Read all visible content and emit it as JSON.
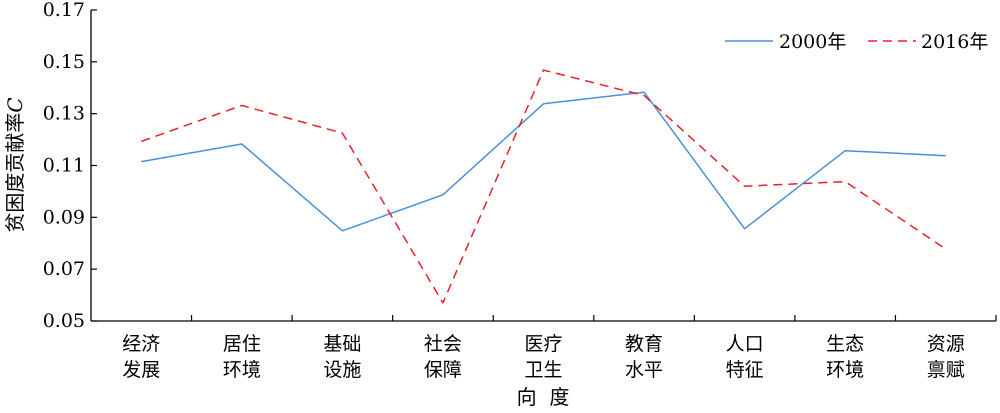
{
  "chart_data": {
    "type": "line",
    "ylabel_main": "贫困度贡献率",
    "ylabel_var": "C",
    "xlabel": "向  度",
    "ylim": [
      0.05,
      0.17
    ],
    "yticks": [
      "0.05",
      "0.07",
      "0.09",
      "0.11",
      "0.13",
      "0.15",
      "0.17"
    ],
    "categories": [
      [
        "经济",
        "发展"
      ],
      [
        "居住",
        "环境"
      ],
      [
        "基础",
        "设施"
      ],
      [
        "社会",
        "保障"
      ],
      [
        "医疗",
        "卫生"
      ],
      [
        "教育",
        "水平"
      ],
      [
        "人口",
        "特征"
      ],
      [
        "生态",
        "环境"
      ],
      [
        "资源",
        "禀赋"
      ]
    ],
    "series": [
      {
        "name": "2000年",
        "color": "#4a90d9",
        "dash": "solid",
        "values": [
          0.1115,
          0.1183,
          0.0848,
          0.0987,
          0.1338,
          0.1383,
          0.0856,
          0.1157,
          0.1138
        ]
      },
      {
        "name": "2016年",
        "color": "#e8212b",
        "dash": "dashed",
        "values": [
          0.1193,
          0.1332,
          0.1225,
          0.057,
          0.1468,
          0.137,
          0.102,
          0.1038,
          0.0778
        ]
      }
    ],
    "legend_position": "top-right",
    "grid": false
  }
}
